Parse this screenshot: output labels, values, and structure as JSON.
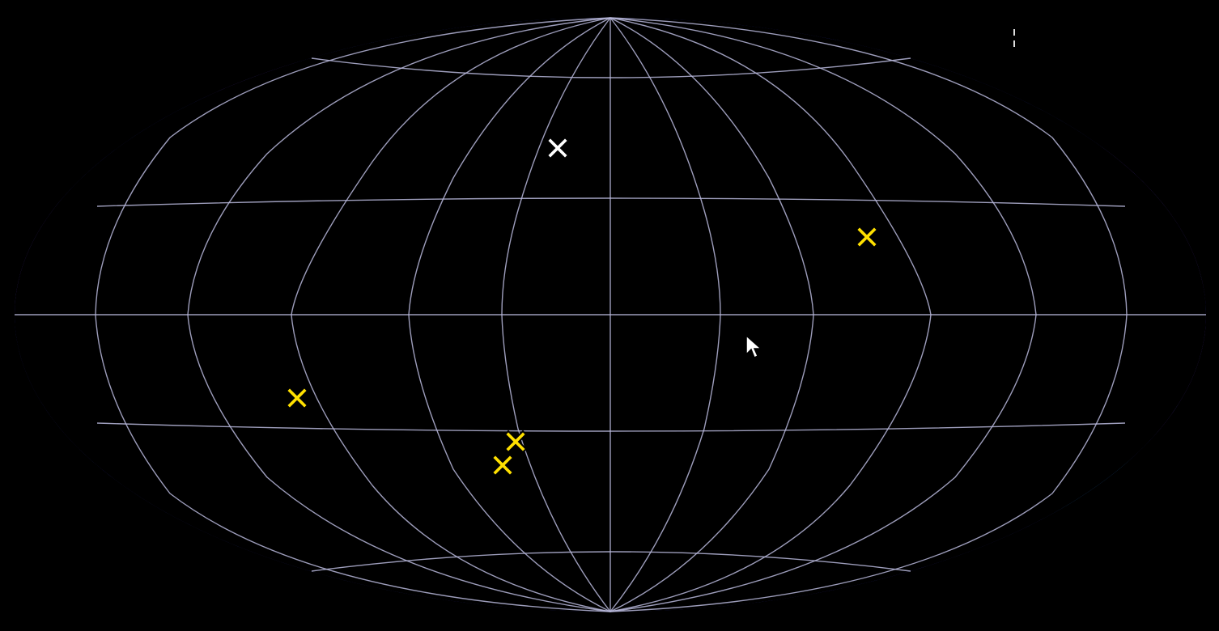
{
  "map": {
    "projection": "aitoff",
    "colors": {
      "background": "#000000",
      "low": "#4a1f8a",
      "mid_low": "#1f3cff",
      "mid": "#2aa9ff",
      "mid_high": "#39c46a",
      "high": "#f7e04a",
      "peak_edge": "#ff6a1a",
      "peak": "#8b0000",
      "streak": "#000000",
      "grid": "#b8b8dc"
    },
    "markers": [
      {
        "id": "white-x",
        "color": "#ffffff"
      },
      {
        "id": "yellow-x-upper-right",
        "color": "#ffe000"
      },
      {
        "id": "yellow-x-left",
        "color": "#ffe000"
      },
      {
        "id": "yellow-x-lower-a",
        "color": "#ffe000"
      },
      {
        "id": "yellow-x-lower-b",
        "color": "#ffe000"
      }
    ]
  }
}
